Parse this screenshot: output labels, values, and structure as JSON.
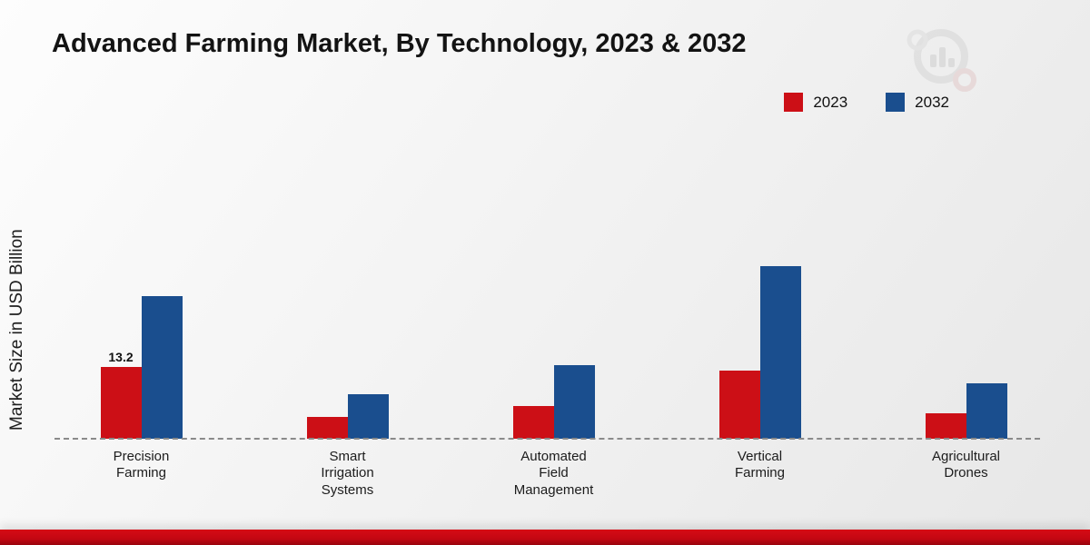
{
  "chart_data": {
    "type": "bar",
    "title": "Advanced Farming Market, By Technology, 2023 & 2032",
    "ylabel": "Market Size in USD Billion",
    "ylim": [
      0,
      35
    ],
    "grid": false,
    "legend_position": "top-right",
    "categories": [
      {
        "label": "Precision Farming",
        "lines": [
          "Precision",
          "Farming"
        ]
      },
      {
        "label": "Smart Irrigation Systems",
        "lines": [
          "Smart",
          "Irrigation",
          "Systems"
        ]
      },
      {
        "label": "Automated Field Management",
        "lines": [
          "Automated",
          "Field",
          "Management"
        ]
      },
      {
        "label": "Vertical Farming",
        "lines": [
          "Vertical",
          "Farming"
        ]
      },
      {
        "label": "Agricultural Drones",
        "lines": [
          "Agricultural",
          "Drones"
        ]
      }
    ],
    "series": [
      {
        "name": "2023",
        "color": "#cc0f16",
        "values": [
          13.2,
          4.0,
          6.0,
          12.5,
          4.7
        ]
      },
      {
        "name": "2032",
        "color": "#1a4e8e",
        "values": [
          26.2,
          8.2,
          13.5,
          31.6,
          10.1
        ]
      }
    ],
    "value_labels": [
      {
        "series": "2023",
        "category_index": 0,
        "text": "13.2"
      }
    ]
  },
  "colors": {
    "accent_red": "#cc0f16",
    "accent_blue": "#1a4e8e",
    "footer_band": "#c30712",
    "watermark_gray": "#d6d6d6"
  },
  "icons": {
    "watermark_logo": "analytics-magnifier-logo"
  }
}
